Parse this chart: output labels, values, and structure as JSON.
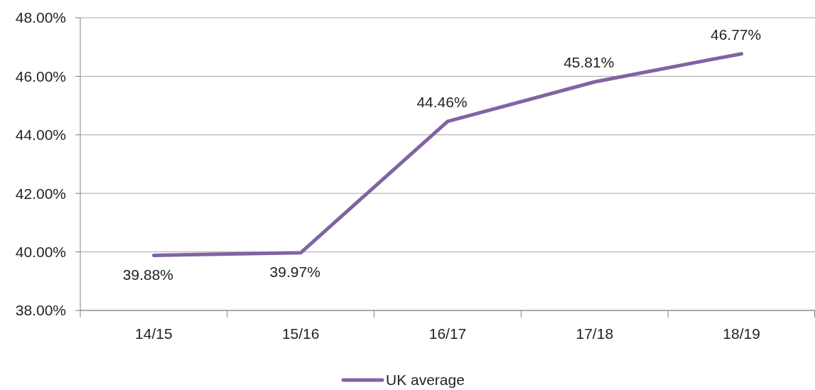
{
  "chart_data": {
    "type": "line",
    "categories": [
      "14/15",
      "15/16",
      "16/17",
      "17/18",
      "18/19"
    ],
    "series": [
      {
        "name": "UK average",
        "color": "#8064a2",
        "values": [
          39.88,
          39.97,
          44.46,
          45.81,
          46.77
        ],
        "value_labels": [
          "39.88%",
          "39.97%",
          "44.46%",
          "45.81%",
          "46.77%"
        ]
      }
    ],
    "ylim": [
      38,
      48
    ],
    "yticks": [
      {
        "value": 38,
        "label": "38.00%"
      },
      {
        "value": 40,
        "label": "40.00%"
      },
      {
        "value": 42,
        "label": "42.00%"
      },
      {
        "value": 44,
        "label": "44.00%"
      },
      {
        "value": 46,
        "label": "46.00%"
      },
      {
        "value": 48,
        "label": "48.00%"
      }
    ],
    "grid": "y",
    "legend": "bottom",
    "marker": "none",
    "line_style": "solid"
  }
}
